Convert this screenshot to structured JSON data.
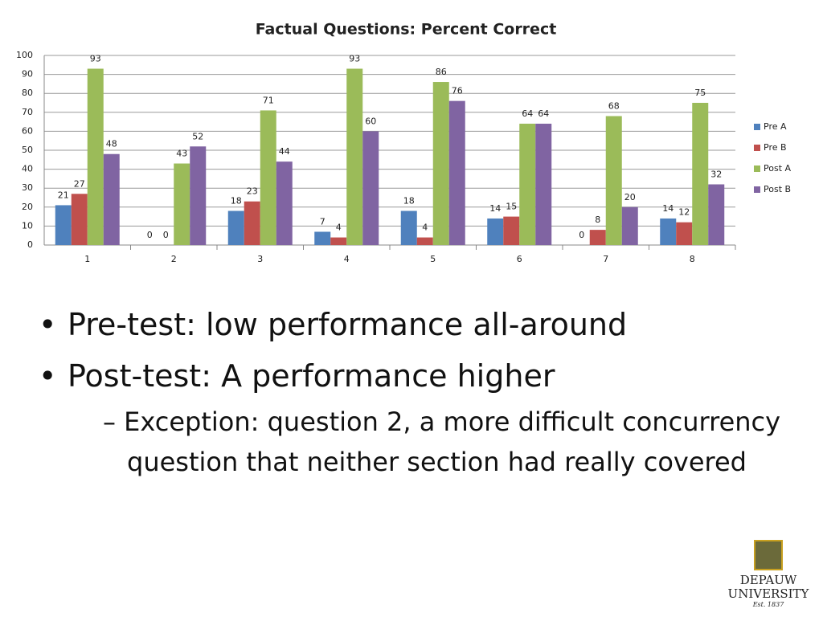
{
  "chart_data": {
    "type": "bar",
    "title": "Factual Questions: Percent Correct",
    "categories": [
      "1",
      "2",
      "3",
      "4",
      "5",
      "6",
      "7",
      "8"
    ],
    "series": [
      {
        "name": "Pre A",
        "color": "#4f81bd",
        "values": [
          21,
          0,
          18,
          7,
          18,
          14,
          0,
          14
        ]
      },
      {
        "name": "Pre B",
        "color": "#c0504d",
        "values": [
          27,
          0,
          23,
          4,
          4,
          15,
          8,
          12
        ]
      },
      {
        "name": "Post A",
        "color": "#9bbb59",
        "values": [
          93,
          43,
          71,
          93,
          86,
          64,
          68,
          75
        ]
      },
      {
        "name": "Post B",
        "color": "#8064a2",
        "values": [
          48,
          52,
          44,
          60,
          76,
          64,
          20,
          32
        ]
      }
    ],
    "ylim": [
      0,
      100
    ],
    "yticks": [
      0,
      10,
      20,
      30,
      40,
      50,
      60,
      70,
      80,
      90,
      100
    ],
    "grid": true,
    "legend": "right"
  },
  "bullets": [
    {
      "text": "Pre-test: low performance all-around"
    },
    {
      "text": "Post-test: A performance higher",
      "sub": [
        "Exception: question 2, a more difficult concurrency question that neither section had really covered"
      ]
    }
  ],
  "logo": {
    "line1": "DEPAUW",
    "line2": "UNIVERSITY",
    "line3": "Est. 1837"
  }
}
